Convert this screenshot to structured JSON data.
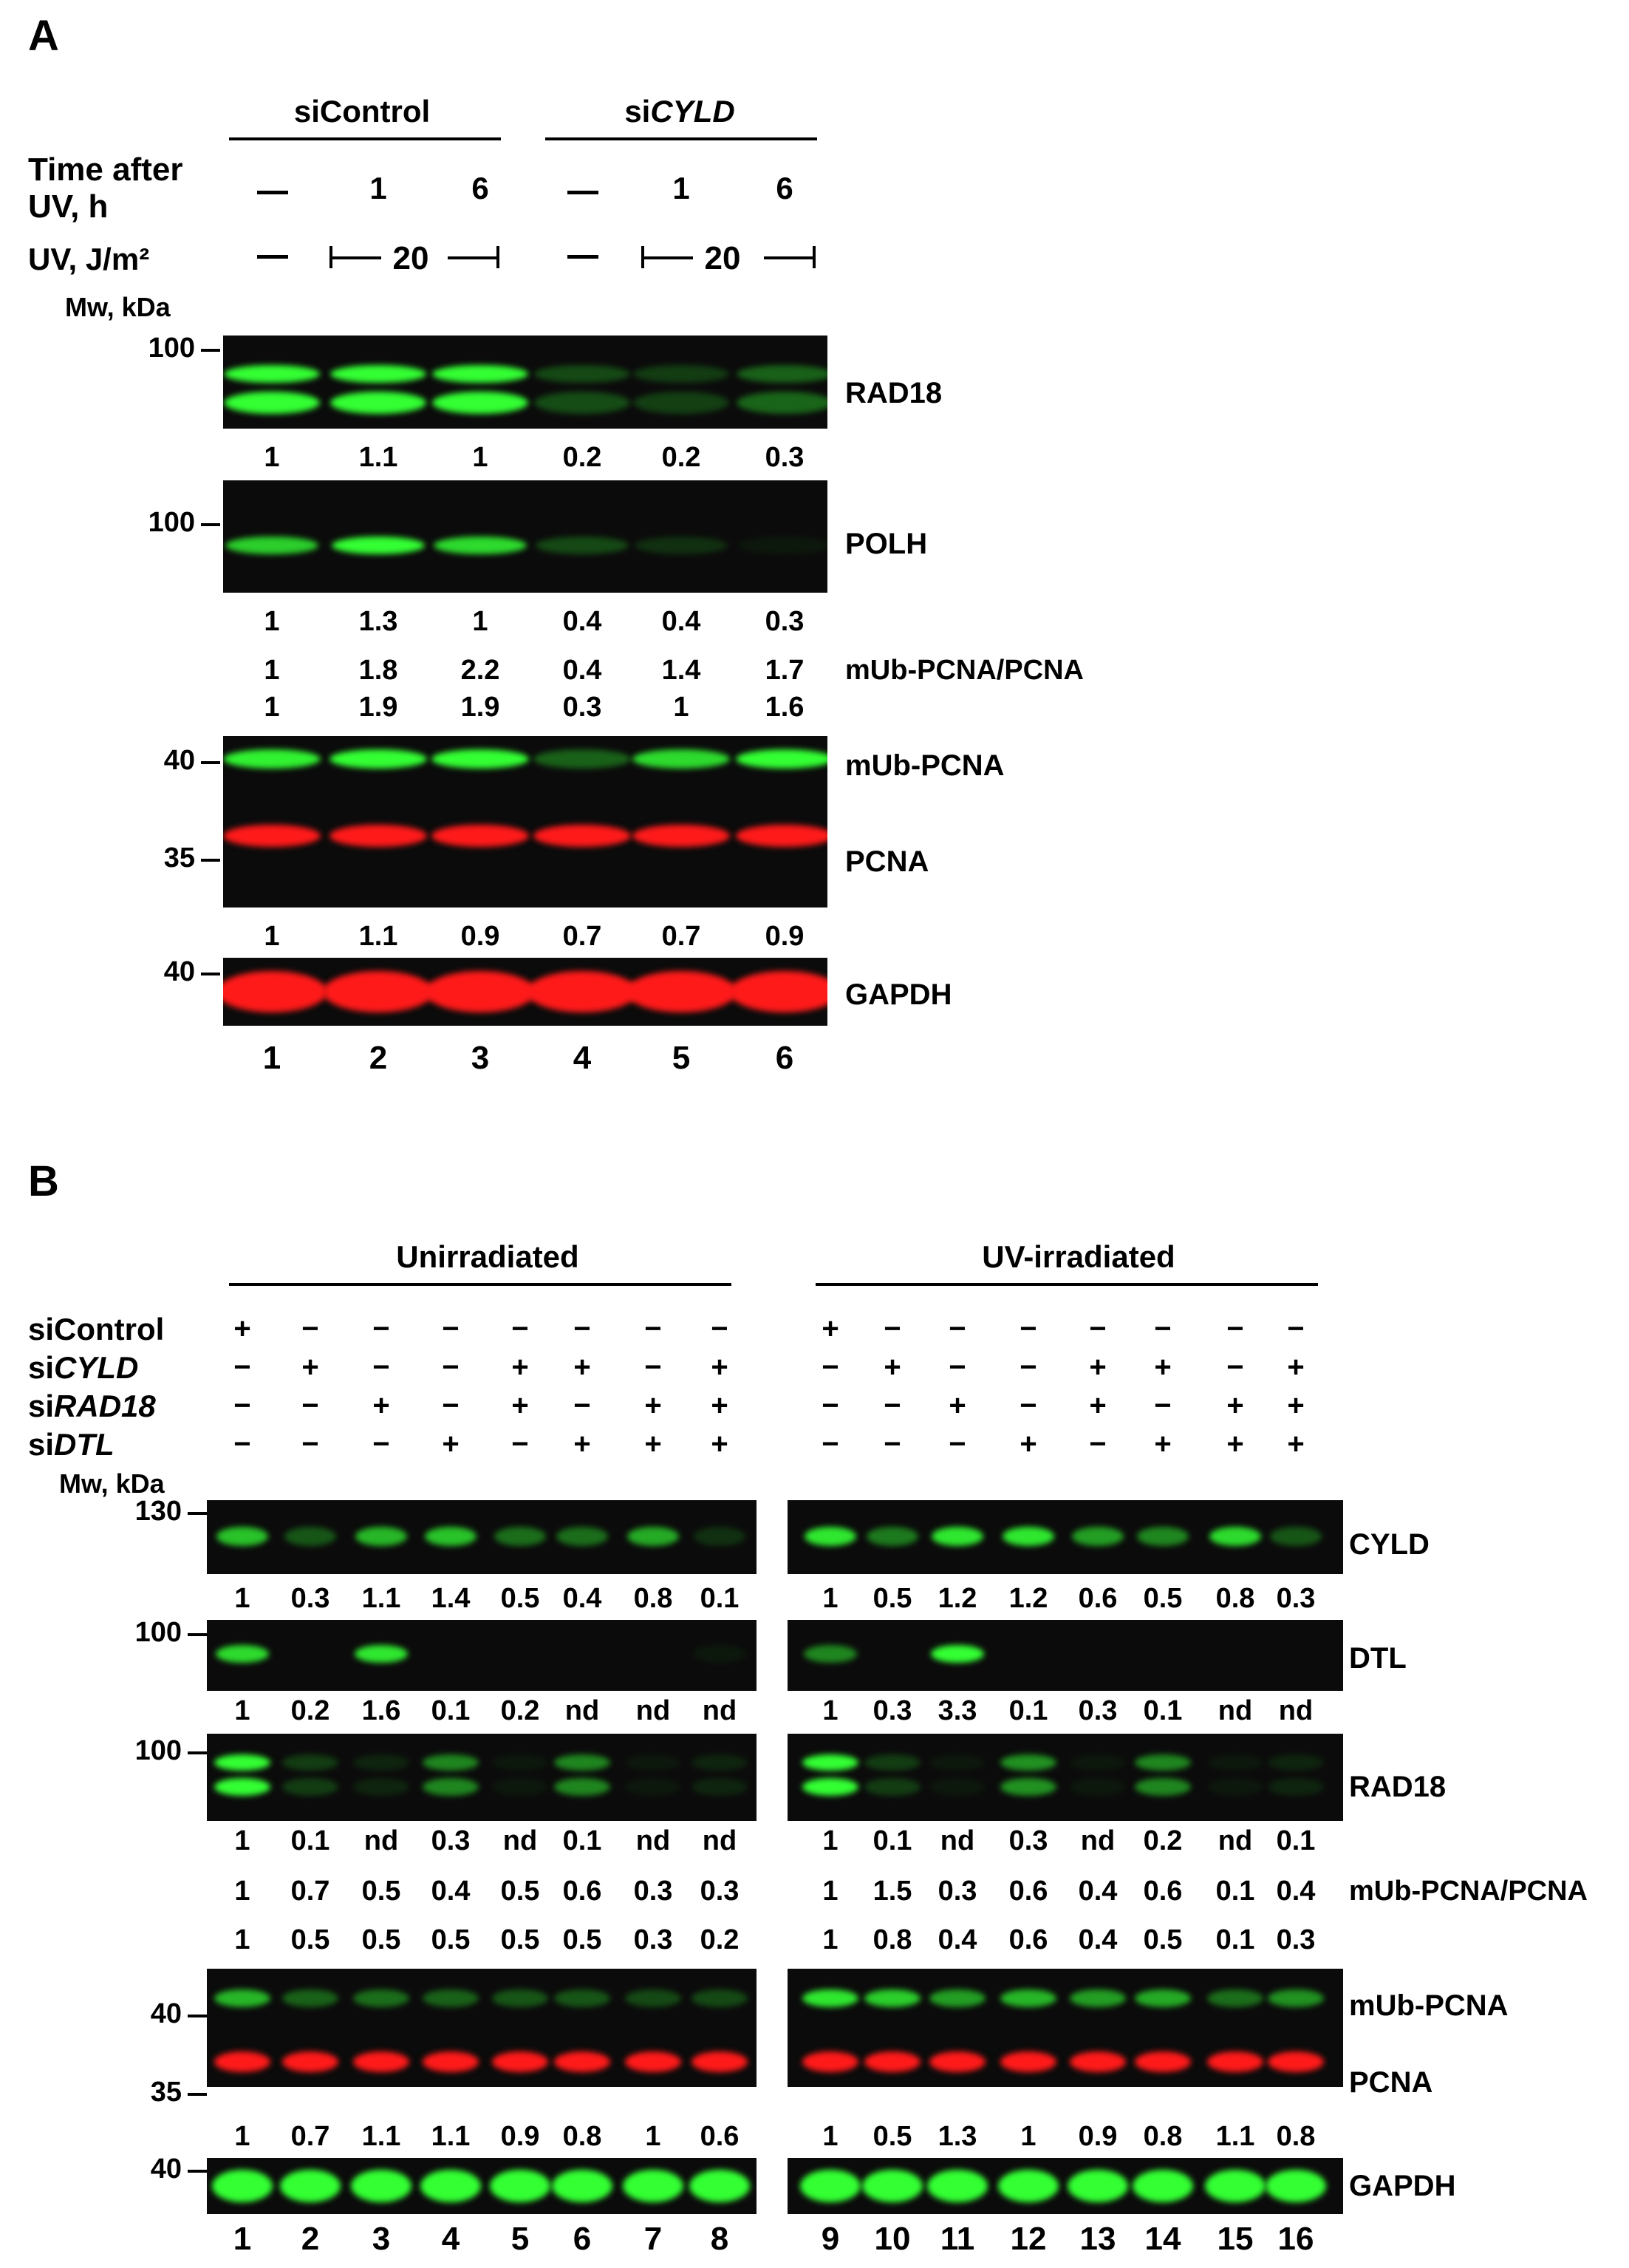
{
  "panelA": {
    "label": "A",
    "groups": [
      "siControl",
      "siCYLD"
    ],
    "group_b_prefix": "si",
    "group_b_italic": "CYLD",
    "time_label_1": "Time after",
    "time_label_2": "UV, h",
    "time_values": [
      "—",
      "1",
      "6",
      "—",
      "1",
      "6"
    ],
    "uv_label": "UV, J/m²",
    "uv_value": "20",
    "mw_label": "Mw, kDa",
    "rad18": {
      "name": "RAD18",
      "mw": "100",
      "quant": [
        "1",
        "1.1",
        "1",
        "0.2",
        "0.2",
        "0.3"
      ]
    },
    "polh": {
      "name": "POLH",
      "mw": "100",
      "quant": [
        "1",
        "1.3",
        "1",
        "0.4",
        "0.4",
        "0.3"
      ]
    },
    "ratio_label": "mUb-PCNA/PCNA",
    "ratio_row1": [
      "1",
      "1.8",
      "2.2",
      "0.4",
      "1.4",
      "1.7"
    ],
    "ratio_row2": [
      "1",
      "1.9",
      "1.9",
      "0.3",
      "1",
      "1.6"
    ],
    "pcna": {
      "name_top": "mUb-PCNA",
      "name_bottom": "PCNA",
      "mw_top": "40",
      "mw_bottom": "35",
      "quant": [
        "1",
        "1.1",
        "0.9",
        "0.7",
        "0.7",
        "0.9"
      ]
    },
    "gapdh": {
      "name": "GAPDH",
      "mw": "40"
    },
    "lanes": [
      "1",
      "2",
      "3",
      "4",
      "5",
      "6"
    ]
  },
  "panelB": {
    "label": "B",
    "groups": [
      "Unirradiated",
      "UV-irradiated"
    ],
    "sirna": [
      {
        "prefix": "siControl",
        "italic": "",
        "signs": [
          "+",
          "−",
          "−",
          "−",
          "−",
          "−",
          "−",
          "−"
        ]
      },
      {
        "prefix": "si",
        "italic": "CYLD",
        "signs": [
          "−",
          "+",
          "−",
          "−",
          "+",
          "+",
          "−",
          "+"
        ]
      },
      {
        "prefix": "si",
        "italic": "RAD18",
        "signs": [
          "−",
          "−",
          "+",
          "−",
          "+",
          "−",
          "+",
          "+"
        ]
      },
      {
        "prefix": "si",
        "italic": "DTL",
        "signs": [
          "−",
          "−",
          "−",
          "+",
          "−",
          "+",
          "+",
          "+"
        ]
      }
    ],
    "mw_label": "Mw, kDa",
    "cyld": {
      "name": "CYLD",
      "mw": "130",
      "quant": [
        "1",
        "0.3",
        "1.1",
        "1.4",
        "0.5",
        "0.4",
        "0.8",
        "0.1",
        "1",
        "0.5",
        "1.2",
        "1.2",
        "0.6",
        "0.5",
        "0.8",
        "0.3"
      ]
    },
    "dtl": {
      "name": "DTL",
      "mw": "100",
      "quant": [
        "1",
        "0.2",
        "1.6",
        "0.1",
        "0.2",
        "nd",
        "nd",
        "nd",
        "1",
        "0.3",
        "3.3",
        "0.1",
        "0.3",
        "0.1",
        "nd",
        "nd"
      ]
    },
    "rad18": {
      "name": "RAD18",
      "mw": "100",
      "quant": [
        "1",
        "0.1",
        "nd",
        "0.3",
        "nd",
        "0.1",
        "nd",
        "nd",
        "1",
        "0.1",
        "nd",
        "0.3",
        "nd",
        "0.2",
        "nd",
        "0.1"
      ]
    },
    "ratio_label": "mUb-PCNA/PCNA",
    "ratio_row1": [
      "1",
      "0.7",
      "0.5",
      "0.4",
      "0.5",
      "0.6",
      "0.3",
      "0.3",
      "1",
      "1.5",
      "0.3",
      "0.6",
      "0.4",
      "0.6",
      "0.1",
      "0.4"
    ],
    "ratio_row2": [
      "1",
      "0.5",
      "0.5",
      "0.5",
      "0.5",
      "0.5",
      "0.3",
      "0.2",
      "1",
      "0.8",
      "0.4",
      "0.6",
      "0.4",
      "0.5",
      "0.1",
      "0.3"
    ],
    "pcna": {
      "name_top": "mUb-PCNA",
      "name_bottom": "PCNA",
      "mw_top": "40",
      "mw_bottom": "35",
      "quant": [
        "1",
        "0.7",
        "1.1",
        "1.1",
        "0.9",
        "0.8",
        "1",
        "0.6",
        "1",
        "0.5",
        "1.3",
        "1",
        "0.9",
        "0.8",
        "1.1",
        "0.8"
      ]
    },
    "gapdh": {
      "name": "GAPDH",
      "mw": "40"
    },
    "lanes": [
      "1",
      "2",
      "3",
      "4",
      "5",
      "6",
      "7",
      "8",
      "9",
      "10",
      "11",
      "12",
      "13",
      "14",
      "15",
      "16"
    ]
  }
}
